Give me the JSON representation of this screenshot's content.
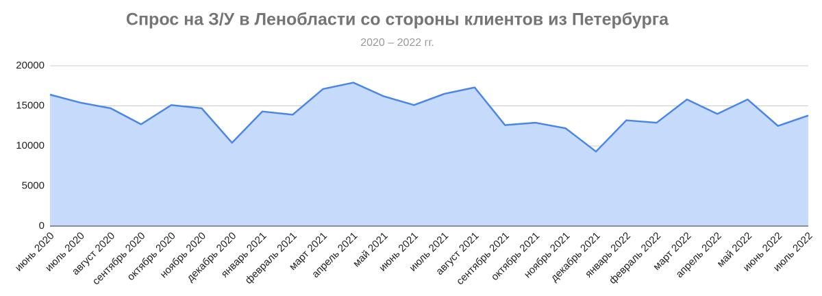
{
  "chart_data": {
    "type": "area",
    "title": "Спрос на З/У в Ленобласти со стороны клиентов из Петербурга",
    "subtitle": "2020 – 2022 гг.",
    "categories": [
      "июнь 2020",
      "июль 2020",
      "август 2020",
      "сентябрь 2020",
      "октябрь 2020",
      "ноябрь 2020",
      "декабрь 2020",
      "январь 2021",
      "февраль 2021",
      "март 2021",
      "апрель 2021",
      "май 2021",
      "июнь 2021",
      "июль 2021",
      "август 2021",
      "сентябрь 2021",
      "октябрь 2021",
      "ноябрь 2021",
      "декабрь 2021",
      "январь 2022",
      "февраль 2022",
      "март 2022",
      "апрель 2022",
      "май 2022",
      "июнь 2022",
      "июль 2022"
    ],
    "values": [
      16400,
      15400,
      14700,
      12700,
      15100,
      14700,
      10400,
      14300,
      13900,
      17100,
      17900,
      16200,
      15100,
      16500,
      17300,
      12600,
      12900,
      12200,
      9300,
      13200,
      12900,
      15800,
      14000,
      15800,
      12500,
      13800
    ],
    "color": "#4a86e8",
    "fill": "#c6dafc",
    "ylim": [
      0,
      20000
    ],
    "yticks": [
      0,
      5000,
      10000,
      15000,
      20000
    ],
    "grid": true
  }
}
